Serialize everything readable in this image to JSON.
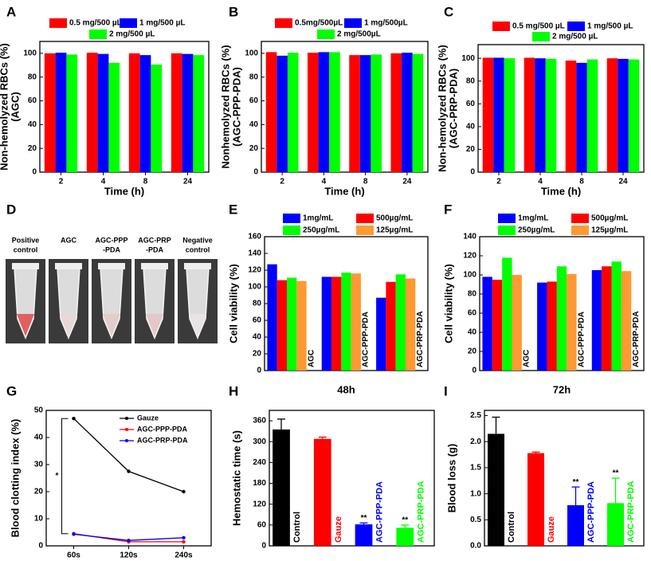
{
  "chart_data": [
    {
      "type": "bar",
      "panel": "A",
      "ylabel": [
        "Non-hemolyzed RBCs (%)",
        "(AGC)"
      ],
      "xlabel": "Time (h)",
      "categories": [
        "2",
        "4",
        "8",
        "24"
      ],
      "ylim": [
        0,
        110
      ],
      "yticks": [
        0,
        20,
        40,
        60,
        80,
        100
      ],
      "series": [
        {
          "name": "0.5 mg/500 µL",
          "color": "#ff0000",
          "values": [
            100,
            100.5,
            100,
            100
          ]
        },
        {
          "name": "1 mg/500 µL",
          "color": "#0000ff",
          "values": [
            100.5,
            99.5,
            98.5,
            99.5
          ]
        },
        {
          "name": "2 mg/500 µL",
          "color": "#00ff00",
          "values": [
            99,
            92,
            90.5,
            98.5
          ]
        }
      ]
    },
    {
      "type": "bar",
      "panel": "B",
      "ylabel": [
        "Nonhemolyzed RBCs (%)",
        "(AGC-PPP-PDA)"
      ],
      "xlabel": "Time (h)",
      "categories": [
        "2",
        "4",
        "8",
        "24"
      ],
      "ylim": [
        0,
        110
      ],
      "yticks": [
        0,
        20,
        40,
        60,
        80,
        100
      ],
      "series": [
        {
          "name": "0.5mg/500µL",
          "color": "#ff0000",
          "values": [
            101,
            100.5,
            98.5,
            100
          ]
        },
        {
          "name": "1 mg/500µL",
          "color": "#0000ff",
          "values": [
            98,
            101,
            98.5,
            100.5
          ]
        },
        {
          "name": "2 mg/500µL",
          "color": "#00ff00",
          "values": [
            100.5,
            101,
            99,
            99.5
          ]
        }
      ]
    },
    {
      "type": "bar",
      "panel": "C",
      "ylabel": [
        "Non-hemolyzed RBCs (%)",
        "(AGC-PRP-PDA)"
      ],
      "xlabel": "Time (h)",
      "categories": [
        "2",
        "4",
        "8",
        "24"
      ],
      "ylim": [
        0,
        112
      ],
      "yticks": [
        0,
        20,
        40,
        60,
        80,
        100
      ],
      "series": [
        {
          "name": "0.5 mg/500 µL",
          "color": "#ff0000",
          "values": [
            100.5,
            100.5,
            98,
            100
          ]
        },
        {
          "name": "1 mg/500 µL",
          "color": "#0000ff",
          "values": [
            100.5,
            100,
            96,
            99.5
          ]
        },
        {
          "name": "2 mg/500 µL",
          "color": "#00ff00",
          "values": [
            100,
            99.5,
            99,
            99
          ]
        }
      ]
    },
    {
      "type": "bar",
      "panel": "E",
      "ylabel": [
        "Cell viability (%)"
      ],
      "xlabel": "48h",
      "categories": [
        "AGC",
        "AGC-PPP-PDA",
        "AGC-PRP-PDA"
      ],
      "ylim": [
        0,
        160
      ],
      "yticks": [
        0,
        20,
        40,
        60,
        80,
        100,
        120,
        140,
        160
      ],
      "series": [
        {
          "name": "1mg/mL",
          "color": "#0000ff",
          "values": [
            127,
            112,
            87
          ]
        },
        {
          "name": "500µg/mL",
          "color": "#ff0000",
          "values": [
            108,
            112,
            106
          ]
        },
        {
          "name": "250µg/mL",
          "color": "#00ff00",
          "values": [
            111,
            117,
            115
          ]
        },
        {
          "name": "125µg/mL",
          "color": "#ff9933",
          "values": [
            107,
            116,
            110
          ]
        }
      ]
    },
    {
      "type": "bar",
      "panel": "F",
      "ylabel": [
        "Cell viability (%)"
      ],
      "xlabel": "72h",
      "categories": [
        "AGC",
        "AGC-PPP-PDA",
        "AGC-PRP-PDA"
      ],
      "ylim": [
        0,
        140
      ],
      "yticks": [
        0,
        20,
        40,
        60,
        80,
        100,
        120,
        140
      ],
      "series": [
        {
          "name": "1mg/mL",
          "color": "#0000ff",
          "values": [
            98,
            92,
            105
          ]
        },
        {
          "name": "500µg/mL",
          "color": "#ff0000",
          "values": [
            95,
            93,
            109
          ]
        },
        {
          "name": "250µg/mL",
          "color": "#00ff00",
          "values": [
            118,
            109,
            114
          ]
        },
        {
          "name": "125µg/mL",
          "color": "#ff9933",
          "values": [
            100,
            101,
            104
          ]
        }
      ]
    },
    {
      "type": "line",
      "panel": "G",
      "ylabel": [
        "Blood clotting index (%)"
      ],
      "annotation": "*",
      "categories": [
        "60s",
        "120s",
        "240s"
      ],
      "ylim": [
        0,
        50
      ],
      "yticks": [
        0,
        10,
        20,
        30,
        40,
        50
      ],
      "series": [
        {
          "name": "Gauze",
          "color": "#000000",
          "values": [
            47,
            27.5,
            20
          ]
        },
        {
          "name": "AGC-PPP-PDA",
          "color": "#ff0000",
          "values": [
            4.5,
            1.5,
            1.5
          ]
        },
        {
          "name": "AGC-PRP-PDA",
          "color": "#0000ff",
          "values": [
            4.3,
            2,
            3
          ]
        }
      ]
    },
    {
      "type": "bar",
      "panel": "H",
      "ylabel": [
        "Hemostatic time (s)"
      ],
      "categories": [
        "Control",
        "Gauze",
        "AGC-PPP-PDA",
        "AGC-PRP-PDA"
      ],
      "ylim": [
        0,
        390
      ],
      "yticks": [
        0,
        60,
        120,
        180,
        240,
        300,
        360
      ],
      "values": [
        335,
        308,
        62,
        52
      ],
      "errors": [
        30,
        5,
        4,
        8
      ],
      "colors": [
        "#000000",
        "#ff0000",
        "#0000ff",
        "#00ff00"
      ],
      "significance": [
        {
          "index": 2,
          "label": "**"
        },
        {
          "index": 3,
          "label": "**"
        }
      ]
    },
    {
      "type": "bar",
      "panel": "I",
      "ylabel": [
        "Blood loss (g)"
      ],
      "categories": [
        "Control",
        "Gauze",
        "AGC-PPP-PDA",
        "AGC-PRP-PDA"
      ],
      "ylim": [
        0,
        2.6
      ],
      "yticks": [
        {
          "value": 0,
          "label": "0.0"
        },
        0.5,
        {
          "value": 1,
          "label": "1.0"
        },
        1.5,
        {
          "value": 2,
          "label": "2.0"
        },
        2.5
      ],
      "values": [
        2.15,
        1.78,
        0.78,
        0.82
      ],
      "errors": [
        0.32,
        0.02,
        0.35,
        0.48
      ],
      "colors": [
        "#000000",
        "#ff0000",
        "#0000ff",
        "#00ff00"
      ],
      "significance": [
        {
          "index": 2,
          "label": "**"
        },
        {
          "index": 3,
          "label": "**"
        }
      ]
    }
  ],
  "photo": {
    "panel": "D",
    "labels": [
      [
        "Positive",
        "control"
      ],
      [
        "AGC"
      ],
      [
        "AGC-PPP",
        "-PDA"
      ],
      [
        "AGC-PRP",
        "-PDA"
      ],
      [
        "Negative",
        "control"
      ]
    ]
  }
}
